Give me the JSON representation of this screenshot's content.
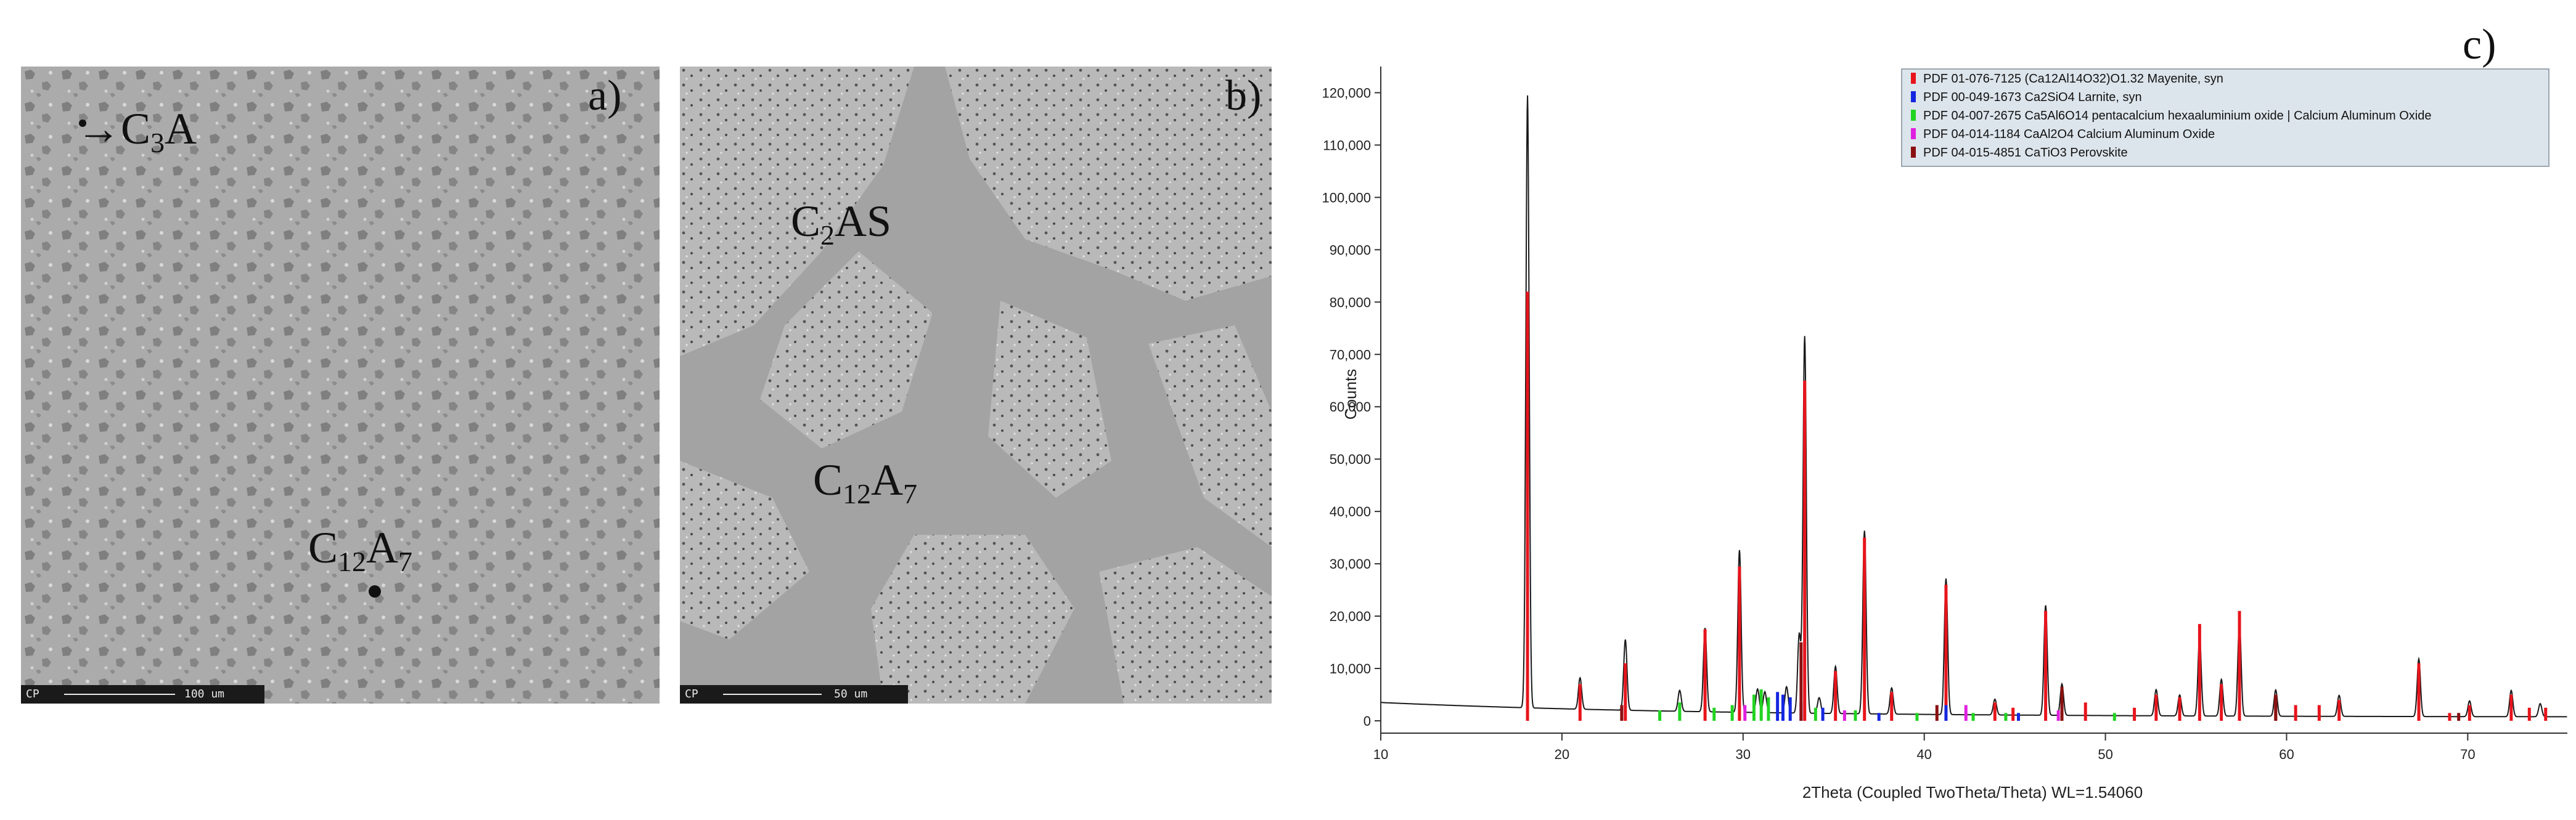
{
  "panel_a": {
    "letter": "a)",
    "phase1_pre": "C",
    "phase1_sub": "3",
    "phase1_post": "A",
    "phase2_pre": "C",
    "phase2_sub": "12",
    "phase2_mid": "A",
    "phase2_sub2": "7",
    "scalebar_tag": "CP",
    "scalebar_value": "100 um"
  },
  "panel_b": {
    "letter": "b)",
    "phase1_pre": "C",
    "phase1_sub": "2",
    "phase1_post": "AS",
    "phase2_pre": "C",
    "phase2_sub": "12",
    "phase2_mid": "A",
    "phase2_sub2": "7",
    "scalebar_tag": "CP",
    "scalebar_value": "50 um"
  },
  "chart_data": {
    "type": "line",
    "panel_letter": "c)",
    "xlabel": "2Theta (Coupled TwoTheta/Theta) WL=1.54060",
    "ylabel": "Counts",
    "xlim": [
      10,
      75.5
    ],
    "ylim": [
      0,
      125000
    ],
    "x_ticks": [
      10,
      20,
      30,
      40,
      50,
      60,
      70
    ],
    "y_ticks": [
      0,
      10000,
      20000,
      30000,
      40000,
      50000,
      60000,
      70000,
      80000,
      90000,
      100000,
      110000,
      120000
    ],
    "y_tick_labels": [
      "0",
      "10,000",
      "20,000",
      "30,000",
      "40,000",
      "50,000",
      "60,000",
      "70,000",
      "80,000",
      "90,000",
      "100,000",
      "110,000",
      "120,000"
    ],
    "legend_position": "top-right",
    "legend": [
      {
        "label": "PDF 01-076-7125 (Ca12Al14O32)O1.32 Mayenite, syn",
        "color": "#e8141c"
      },
      {
        "label": "PDF 00-049-1673 Ca2SiO4 Larnite, syn",
        "color": "#1427e0"
      },
      {
        "label": "PDF 04-007-2675 Ca5Al6O14 pentacalcium hexaaluminium oxide | Calcium Aluminum Oxide",
        "color": "#22d422"
      },
      {
        "label": "PDF 04-014-1184 CaAl2O4 Calcium Aluminum Oxide",
        "color": "#e020e0"
      },
      {
        "label": "PDF 04-015-4851 CaTiO3 Perovskite",
        "color": "#8a1010"
      }
    ],
    "pattern_color": "#1a1a1a",
    "pattern_peaks": [
      [
        18.1,
        117000
      ],
      [
        21.0,
        6000
      ],
      [
        23.5,
        13500
      ],
      [
        26.5,
        4000
      ],
      [
        27.9,
        16000
      ],
      [
        29.8,
        31000
      ],
      [
        30.8,
        4500
      ],
      [
        31.2,
        4000
      ],
      [
        32.4,
        5000
      ],
      [
        33.1,
        15000
      ],
      [
        33.4,
        72000
      ],
      [
        34.2,
        3000
      ],
      [
        35.1,
        9000
      ],
      [
        36.7,
        35000
      ],
      [
        38.2,
        5000
      ],
      [
        41.2,
        26000
      ],
      [
        43.9,
        3000
      ],
      [
        46.7,
        21000
      ],
      [
        47.6,
        6000
      ],
      [
        52.8,
        5000
      ],
      [
        54.1,
        4000
      ],
      [
        55.2,
        15000
      ],
      [
        56.4,
        7000
      ],
      [
        57.4,
        18000
      ],
      [
        59.4,
        5000
      ],
      [
        62.9,
        4000
      ],
      [
        67.3,
        11000
      ],
      [
        70.1,
        3000
      ],
      [
        72.4,
        5000
      ],
      [
        74.0,
        2500
      ]
    ],
    "series": [
      {
        "name": "PDF 01-076-7125 (Ca12Al14O32)O1.32 Mayenite, syn",
        "color": "#e8141c",
        "sticks": [
          [
            18.1,
            82000
          ],
          [
            21.0,
            7000
          ],
          [
            23.5,
            11000
          ],
          [
            27.9,
            17500
          ],
          [
            29.8,
            29500
          ],
          [
            33.4,
            65000
          ],
          [
            35.1,
            9500
          ],
          [
            36.7,
            35000
          ],
          [
            38.2,
            5500
          ],
          [
            41.2,
            26000
          ],
          [
            43.9,
            3500
          ],
          [
            44.9,
            2500
          ],
          [
            46.7,
            21000
          ],
          [
            48.9,
            3500
          ],
          [
            51.6,
            2500
          ],
          [
            52.8,
            5000
          ],
          [
            54.1,
            4500
          ],
          [
            55.2,
            18500
          ],
          [
            56.4,
            7000
          ],
          [
            57.4,
            21000
          ],
          [
            59.4,
            4500
          ],
          [
            60.5,
            3000
          ],
          [
            61.8,
            3000
          ],
          [
            62.9,
            4000
          ],
          [
            67.3,
            11000
          ],
          [
            69.0,
            1500
          ],
          [
            70.1,
            3000
          ],
          [
            72.4,
            5000
          ],
          [
            73.4,
            2500
          ],
          [
            74.3,
            2500
          ]
        ]
      },
      {
        "name": "PDF 00-049-1673 Ca2SiO4 Larnite, syn",
        "color": "#1427e0",
        "sticks": [
          [
            31.9,
            5500
          ],
          [
            32.2,
            5000
          ],
          [
            32.6,
            4500
          ],
          [
            33.2,
            3500
          ],
          [
            34.4,
            2500
          ],
          [
            37.5,
            1500
          ],
          [
            41.2,
            3000
          ],
          [
            45.2,
            1500
          ]
        ]
      },
      {
        "name": "PDF 04-007-2675 Ca5Al6O14 pentacalcium hexaaluminium oxide | Calcium Aluminum Oxide",
        "color": "#22d422",
        "sticks": [
          [
            25.4,
            2000
          ],
          [
            26.5,
            3500
          ],
          [
            28.4,
            2500
          ],
          [
            29.4,
            3000
          ],
          [
            30.6,
            5000
          ],
          [
            31.0,
            6000
          ],
          [
            31.4,
            4500
          ],
          [
            34.0,
            2500
          ],
          [
            36.2,
            2000
          ],
          [
            39.6,
            1500
          ],
          [
            42.7,
            1500
          ],
          [
            44.5,
            1500
          ],
          [
            50.5,
            1500
          ]
        ]
      },
      {
        "name": "PDF 04-014-1184 CaAl2O4 Calcium Aluminum Oxide",
        "color": "#e020e0",
        "sticks": [
          [
            30.1,
            3000
          ],
          [
            35.6,
            2000
          ],
          [
            42.3,
            3000
          ],
          [
            47.4,
            2000
          ]
        ]
      },
      {
        "name": "PDF 04-015-4851 CaTiO3 Perovskite",
        "color": "#8a1010",
        "sticks": [
          [
            23.3,
            3000
          ],
          [
            33.2,
            15000
          ],
          [
            40.7,
            3000
          ],
          [
            47.6,
            6500
          ],
          [
            59.4,
            5000
          ],
          [
            69.5,
            1500
          ]
        ]
      }
    ]
  }
}
